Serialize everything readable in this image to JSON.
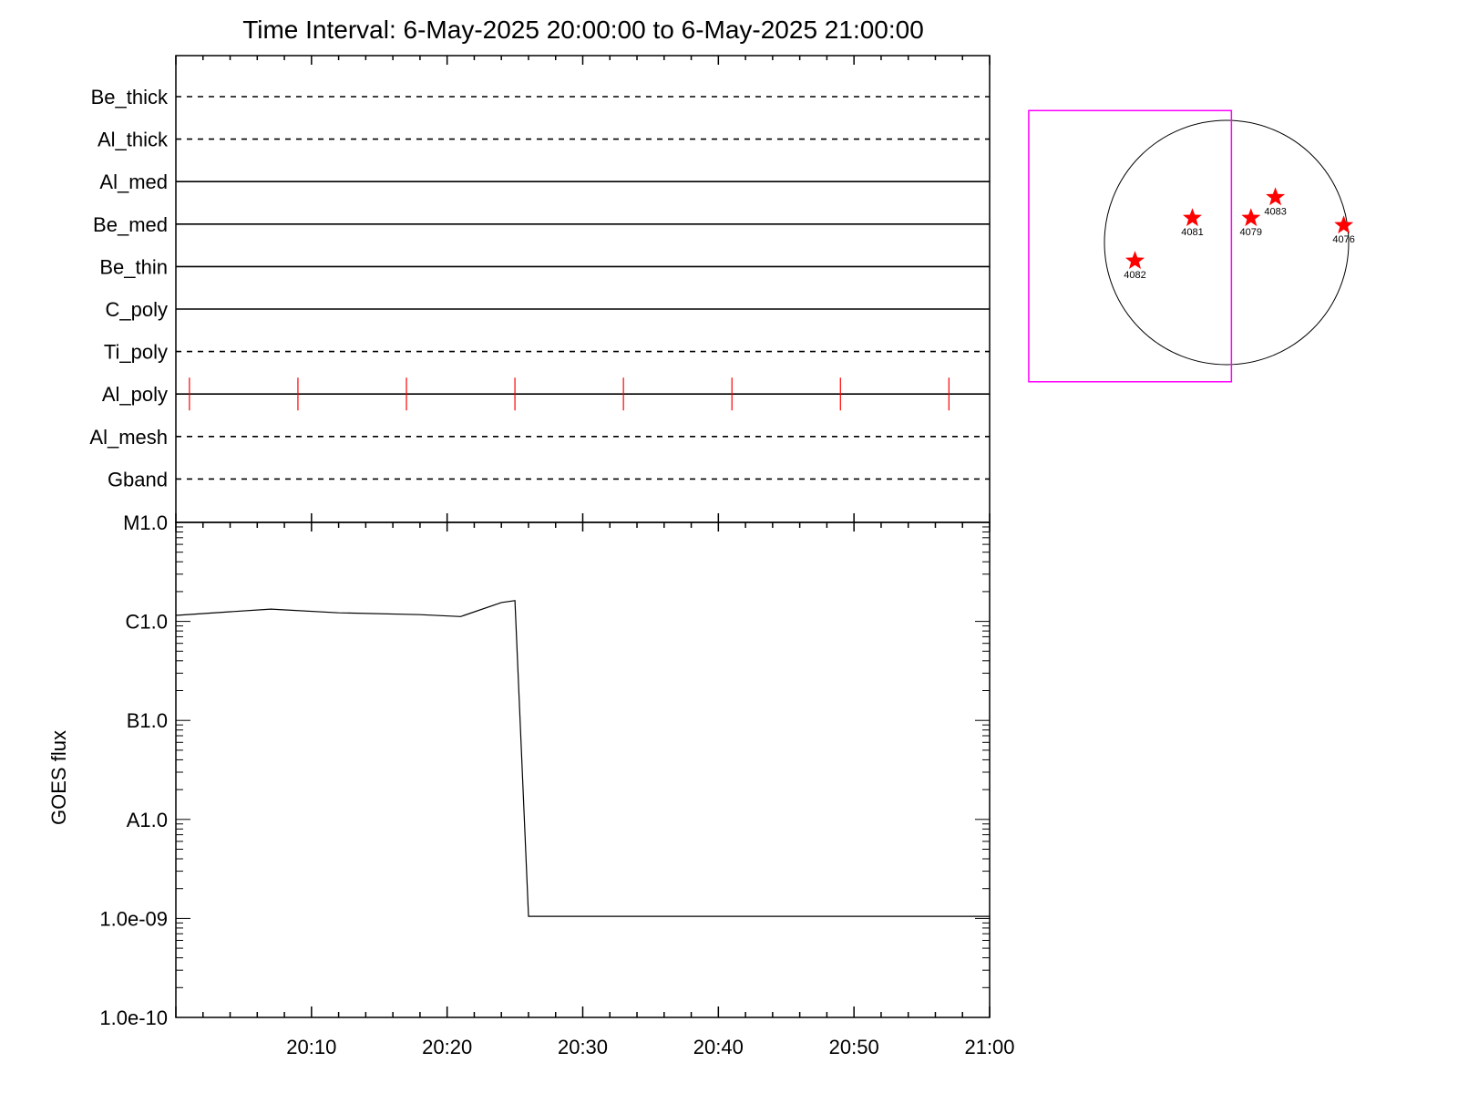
{
  "title": "Time Interval:  6-May-2025 20:00:00 to  6-May-2025 21:00:00",
  "colors": {
    "frame": "#000000",
    "event_marks": "#ff0000",
    "fov_box": "#ff00ff",
    "star": "#ff0000"
  },
  "chart_data": [
    {
      "type": "timeline",
      "x_range": [
        "20:00",
        "21:00"
      ],
      "channels": [
        {
          "name": "Be_thick",
          "style": "dashed"
        },
        {
          "name": "Al_thick",
          "style": "dashed"
        },
        {
          "name": "Al_med",
          "style": "solid"
        },
        {
          "name": "Be_med",
          "style": "solid"
        },
        {
          "name": "Be_thin",
          "style": "solid"
        },
        {
          "name": "C_poly",
          "style": "solid"
        },
        {
          "name": "Ti_poly",
          "style": "dashed"
        },
        {
          "name": "Al_poly",
          "style": "solid",
          "marks": [
            "20:01",
            "20:09",
            "20:17",
            "20:25",
            "20:33",
            "20:41",
            "20:49",
            "20:57"
          ]
        },
        {
          "name": "Al_mesh",
          "style": "dashed"
        },
        {
          "name": "Gband",
          "style": "dashed"
        }
      ]
    },
    {
      "type": "line",
      "ylabel": "GOES flux",
      "yscale": "log",
      "ylim": [
        1e-10,
        1e-05
      ],
      "x_range": [
        "20:00",
        "21:00"
      ],
      "x_ticks": [
        "20:10",
        "20:20",
        "20:30",
        "20:40",
        "20:50",
        "21:00"
      ],
      "y_ticks": [
        {
          "value": 1e-05,
          "label": "M1.0"
        },
        {
          "value": 1e-06,
          "label": "C1.0"
        },
        {
          "value": 1e-07,
          "label": "B1.0"
        },
        {
          "value": 1e-08,
          "label": "A1.0"
        },
        {
          "value": 1e-09,
          "label": "1.0e-09"
        },
        {
          "value": 1e-10,
          "label": "1.0e-10"
        }
      ],
      "series": [
        {
          "x": [
            "20:00",
            "20:07",
            "20:12",
            "20:18",
            "20:21",
            "20:24",
            "20:25",
            "20:26",
            "21:00"
          ],
          "y": [
            1.15e-06,
            1.33e-06,
            1.22e-06,
            1.17e-06,
            1.12e-06,
            1.55e-06,
            1.62e-06,
            1.05e-09,
            1.05e-09
          ]
        }
      ]
    },
    {
      "type": "scatter",
      "description_units": "solar disk, fraction of radius",
      "disk": {
        "center": [
          0,
          0
        ],
        "radius": 1.0
      },
      "fov_box": {
        "x": [
          -1.62,
          0.04
        ],
        "y": [
          -1.14,
          1.08
        ]
      },
      "points": [
        {
          "label": "4082",
          "x": -0.75,
          "y": -0.15
        },
        {
          "label": "4081",
          "x": -0.28,
          "y": 0.2
        },
        {
          "label": "4079",
          "x": 0.2,
          "y": 0.2
        },
        {
          "label": "4083",
          "x": 0.4,
          "y": 0.37
        },
        {
          "label": "4076",
          "x": 0.96,
          "y": 0.14
        }
      ]
    }
  ]
}
